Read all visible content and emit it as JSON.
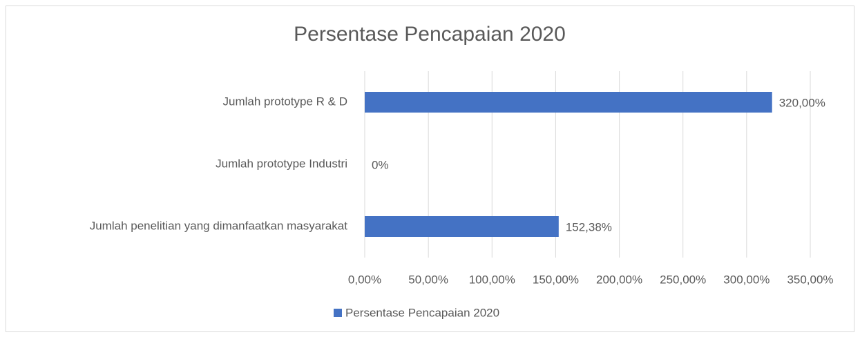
{
  "chart_data": {
    "type": "hbar",
    "title": "Persentase Pencapaian 2020",
    "categories": [
      "Jumlah prototype R & D",
      "Jumlah prototype Industri",
      "Jumlah penelitian yang dimanfaatkan masyarakat"
    ],
    "series": [
      {
        "name": "Persentase Pencapaian 2020",
        "color": "#4472c4",
        "values": [
          320,
          0,
          152.38
        ],
        "value_labels": [
          "320,00%",
          "0%",
          "152,38%"
        ]
      }
    ],
    "xlim": [
      0,
      350
    ],
    "xticks": [
      {
        "value": 0,
        "label": "0,00%"
      },
      {
        "value": 50,
        "label": "50,00%"
      },
      {
        "value": 100,
        "label": "100,00%"
      },
      {
        "value": 150,
        "label": "150,00%"
      },
      {
        "value": 200,
        "label": "200,00%"
      },
      {
        "value": 250,
        "label": "250,00%"
      },
      {
        "value": 300,
        "label": "300,00%"
      },
      {
        "value": 350,
        "label": "350,00%"
      }
    ],
    "grid": true,
    "legend": "bottom"
  }
}
